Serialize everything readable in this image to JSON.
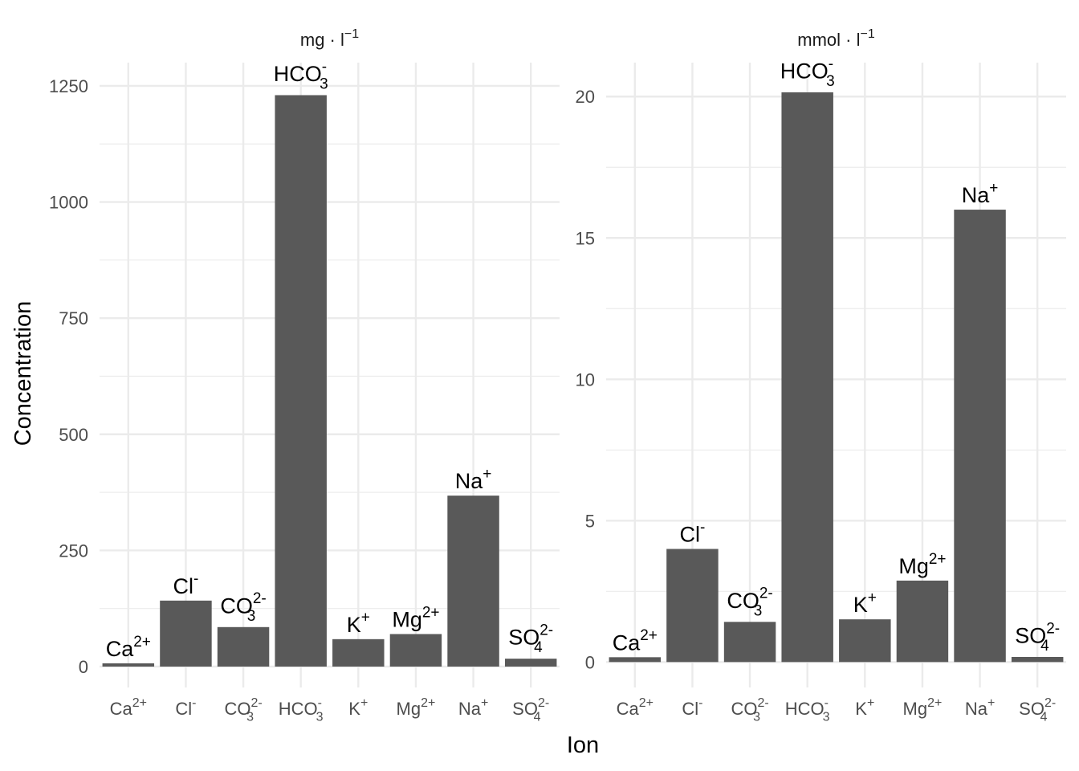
{
  "chart_data": {
    "type": "bar",
    "xlabel": "Ion",
    "ylabel": "Concentration",
    "grid": true,
    "bar_color": "#595959",
    "categories": [
      {
        "base": "Ca",
        "sup": "2+",
        "sub": ""
      },
      {
        "base": "Cl",
        "sup": "-",
        "sub": ""
      },
      {
        "base": "CO",
        "sup": "2-",
        "sub": "3"
      },
      {
        "base": "HCO",
        "sup": "-",
        "sub": "3"
      },
      {
        "base": "K",
        "sup": "+",
        "sub": ""
      },
      {
        "base": "Mg",
        "sup": "2+",
        "sub": ""
      },
      {
        "base": "Na",
        "sup": "+",
        "sub": ""
      },
      {
        "base": "SO",
        "sup": "2-",
        "sub": "4"
      }
    ],
    "panels": [
      {
        "title": {
          "pre": "mg · l",
          "sup": "−1"
        },
        "ylim": [
          -45,
          1300
        ],
        "yticks": [
          0,
          250,
          500,
          750,
          1000,
          1250
        ],
        "ytick_labels": [
          "0",
          "250",
          "500",
          "750",
          "1000",
          "1250"
        ],
        "values": [
          7,
          142,
          85,
          1230,
          59,
          70,
          368,
          17
        ]
      },
      {
        "title": {
          "pre": "mmol · l",
          "sup": "−1"
        },
        "ylim": [
          -0.9,
          21.2
        ],
        "yticks": [
          0,
          5,
          10,
          15,
          20
        ],
        "ytick_labels": [
          "0",
          "5",
          "10",
          "15",
          "20"
        ],
        "values": [
          0.17,
          4.0,
          1.42,
          20.15,
          1.51,
          2.88,
          16.0,
          0.18
        ]
      }
    ]
  }
}
